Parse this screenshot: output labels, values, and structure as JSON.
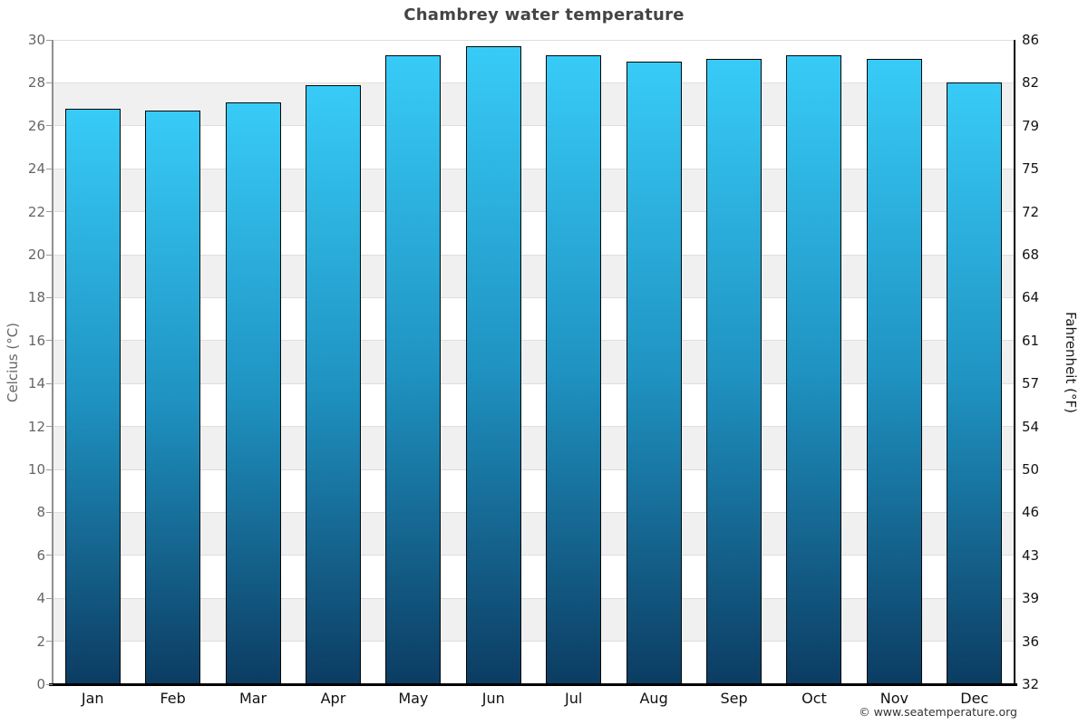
{
  "header": {
    "title": "Chambrey water temperature"
  },
  "footer": {
    "credit": "© www.seatemperature.org"
  },
  "colors": {
    "bar_gradient_top": "#38cbf7",
    "bar_gradient_mid": "#1f93c2",
    "bar_gradient_bottom": "#0c3c62",
    "bar_border": "#070707",
    "band_gray": "#f0f0f0",
    "gridline": "#dedede",
    "title_text": "#444444",
    "left_axis_text": "#666666",
    "right_axis_text": "#151515",
    "background": "#ffffff"
  },
  "chart_data": {
    "type": "bar",
    "title": "Chambrey water temperature",
    "categories": [
      "Jan",
      "Feb",
      "Mar",
      "Apr",
      "May",
      "Jun",
      "Jul",
      "Aug",
      "Sep",
      "Oct",
      "Nov",
      "Dec"
    ],
    "series": [
      {
        "name": "Water temperature (Celsius)",
        "unit": "°C",
        "values": [
          26.8,
          26.7,
          27.1,
          27.9,
          29.3,
          29.7,
          29.3,
          29.0,
          29.1,
          29.3,
          29.1,
          28.0
        ]
      },
      {
        "name": "Water temperature (Fahrenheit)",
        "unit": "°F",
        "values": [
          80.2,
          80.1,
          80.8,
          82.2,
          84.7,
          85.5,
          84.7,
          84.2,
          84.4,
          84.7,
          84.4,
          82.4
        ]
      }
    ],
    "xlabel": "",
    "ylabel_left": "Celcius (°C)",
    "ylabel_right": "Fahrenheit (°F)",
    "ylim_celsius": [
      0,
      30
    ],
    "left_ticks": [
      30,
      28,
      26,
      24,
      22,
      20,
      18,
      16,
      14,
      12,
      10,
      8,
      6,
      4,
      2,
      0
    ],
    "right_ticks": [
      86,
      82,
      79,
      75,
      72,
      68,
      64,
      61,
      57,
      54,
      50,
      46,
      43,
      39,
      36,
      32
    ],
    "grid": "alternating horizontal gray bands every 2°C with light gridlines",
    "legend": "none"
  }
}
